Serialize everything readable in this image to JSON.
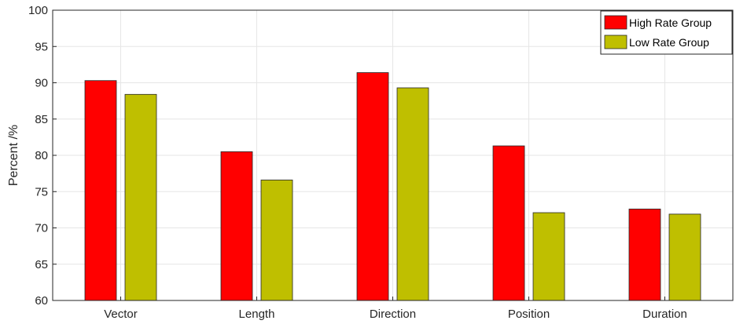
{
  "chart_data": {
    "type": "bar",
    "title": "",
    "xlabel": "",
    "ylabel": "Percent /%",
    "ylim": [
      60,
      100
    ],
    "yticks": [
      60,
      65,
      70,
      75,
      80,
      85,
      90,
      95,
      100
    ],
    "grid": true,
    "legend_position": "top-right",
    "categories": [
      "Vector",
      "Length",
      "Direction",
      "Position",
      "Duration"
    ],
    "series": [
      {
        "name": "High Rate Group",
        "color": "#ff0000",
        "values": [
          90.3,
          80.5,
          91.4,
          81.3,
          72.6
        ]
      },
      {
        "name": "Low Rate Group",
        "color": "#bfbf00",
        "values": [
          88.4,
          76.6,
          89.3,
          72.1,
          71.9
        ]
      }
    ]
  }
}
